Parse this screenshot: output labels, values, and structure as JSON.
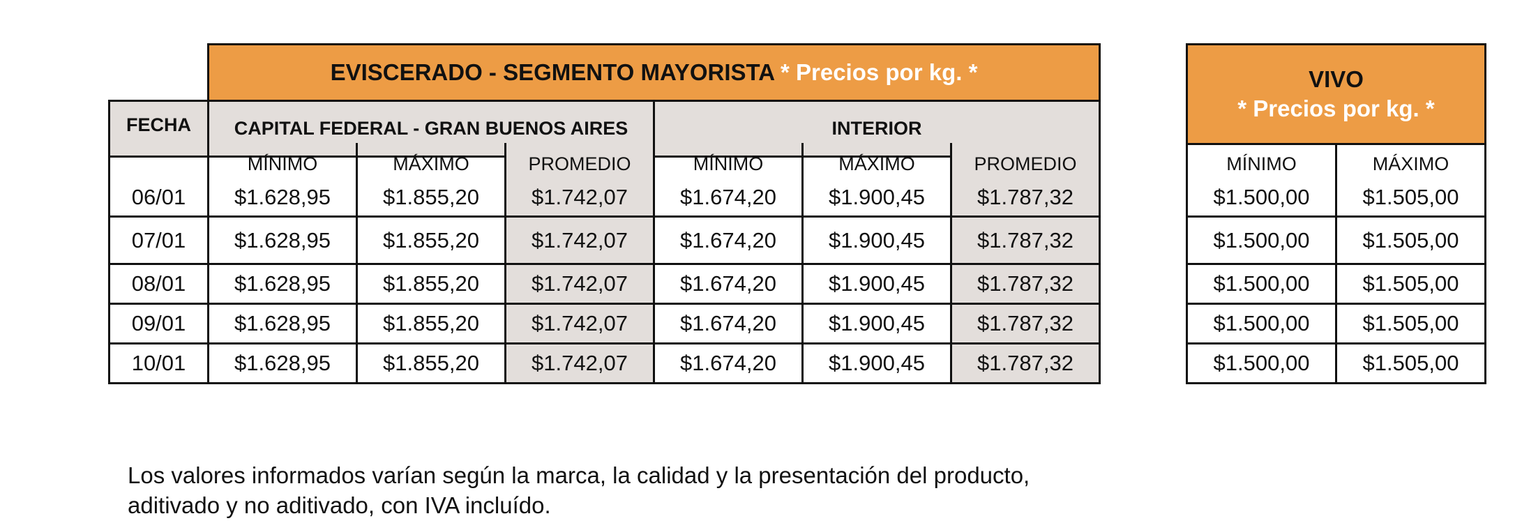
{
  "main": {
    "title_prefix": "EVISCERADO - SEGMENTO MAYORISTA",
    "title_suffix": "* Precios por kg. *",
    "fecha_label": "FECHA",
    "region_capital": "CAPITAL FEDERAL - GRAN BUENOS AIRES",
    "region_interior": "INTERIOR",
    "col_min": "MÍNIMO",
    "col_max": "MÁXIMO",
    "col_avg": "PROMEDIO",
    "rows": [
      {
        "fecha": "06/01",
        "cap_min": "$1.628,95",
        "cap_max": "$1.855,20",
        "cap_avg": "$1.742,07",
        "int_min": "$1.674,20",
        "int_max": "$1.900,45",
        "int_avg": "$1.787,32"
      },
      {
        "fecha": "07/01",
        "cap_min": "$1.628,95",
        "cap_max": "$1.855,20",
        "cap_avg": "$1.742,07",
        "int_min": "$1.674,20",
        "int_max": "$1.900,45",
        "int_avg": "$1.787,32"
      },
      {
        "fecha": "08/01",
        "cap_min": "$1.628,95",
        "cap_max": "$1.855,20",
        "cap_avg": "$1.742,07",
        "int_min": "$1.674,20",
        "int_max": "$1.900,45",
        "int_avg": "$1.787,32"
      },
      {
        "fecha": "09/01",
        "cap_min": "$1.628,95",
        "cap_max": "$1.855,20",
        "cap_avg": "$1.742,07",
        "int_min": "$1.674,20",
        "int_max": "$1.900,45",
        "int_avg": "$1.787,32"
      },
      {
        "fecha": "10/01",
        "cap_min": "$1.628,95",
        "cap_max": "$1.855,20",
        "cap_avg": "$1.742,07",
        "int_min": "$1.674,20",
        "int_max": "$1.900,45",
        "int_avg": "$1.787,32"
      }
    ]
  },
  "vivo": {
    "title": "VIVO",
    "subtitle": "* Precios por kg. *",
    "col_min": "MÍNIMO",
    "col_max": "MÁXIMO",
    "rows": [
      {
        "min": "$1.500,00",
        "max": "$1.505,00"
      },
      {
        "min": "$1.500,00",
        "max": "$1.505,00"
      },
      {
        "min": "$1.500,00",
        "max": "$1.505,00"
      },
      {
        "min": "$1.500,00",
        "max": "$1.505,00"
      },
      {
        "min": "$1.500,00",
        "max": "$1.505,00"
      }
    ]
  },
  "footnote": {
    "line1": "Los valores informados varían según la marca, la calidad y la presentación del producto,",
    "line2": "aditivado y no aditivado, con IVA incluído."
  },
  "colors": {
    "header_orange": "#ED9C45",
    "shade_grey": "#E3DEDB",
    "border": "#111111"
  }
}
